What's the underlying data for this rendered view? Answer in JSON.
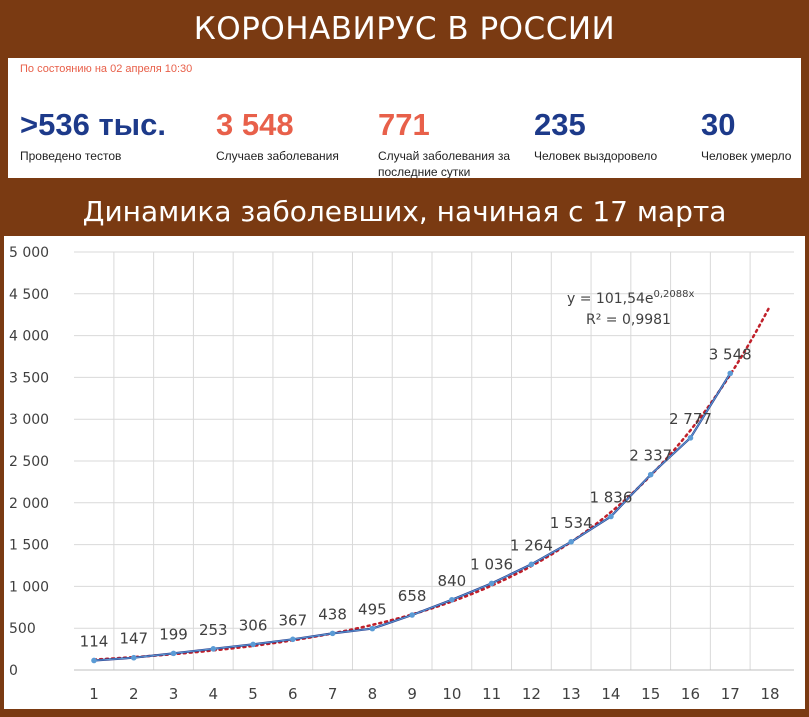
{
  "header": {
    "title": "КОРОНАВИРУС В РОССИИ"
  },
  "stats": {
    "as_of": "По состоянию на 02 апреля 10:30",
    "items": [
      {
        "value": ">536 тыс.",
        "label": "Проведено тестов",
        "color": "#1d3a8a"
      },
      {
        "value": "3 548",
        "label": "Случаев заболевания",
        "color": "#e8604a"
      },
      {
        "value": "771",
        "label": "Случай заболевания за последние сутки",
        "color": "#e8604a"
      },
      {
        "value": "235",
        "label": "Человек выздоровело",
        "color": "#1d3a8a"
      },
      {
        "value": "30",
        "label": "Человек умерло",
        "color": "#1d3a8a"
      }
    ]
  },
  "section": {
    "title": "Динамика заболевших, начиная с 17 марта"
  },
  "colors": {
    "banner": "#7a3a12",
    "series_line": "#2f3f8f",
    "series_marker": "#5b9bd5",
    "trend": "#c0202a",
    "grid": "#d9d9d9"
  },
  "chart_data": {
    "type": "line",
    "x": [
      1,
      2,
      3,
      4,
      5,
      6,
      7,
      8,
      9,
      10,
      11,
      12,
      13,
      14,
      15,
      16,
      17
    ],
    "x_ticks": [
      "1",
      "2",
      "3",
      "4",
      "5",
      "6",
      "7",
      "8",
      "9",
      "10",
      "11",
      "12",
      "13",
      "14",
      "15",
      "16",
      "17",
      "18"
    ],
    "values": [
      114,
      147,
      199,
      253,
      306,
      367,
      438,
      495,
      658,
      840,
      1036,
      1264,
      1534,
      1836,
      2337,
      2777,
      3548
    ],
    "data_labels": [
      "114",
      "147",
      "199",
      "253",
      "306",
      "367",
      "438",
      "495",
      "658",
      "840",
      "1 036",
      "1 264",
      "1 534",
      "1 836",
      "2 337",
      "2 777",
      "3 548"
    ],
    "y_ticks": [
      "0",
      "500",
      "1 000",
      "1 500",
      "2 000",
      "2 500",
      "3 000",
      "3 500",
      "4 000",
      "4 500",
      "5 000"
    ],
    "ylim": [
      0,
      5000
    ],
    "xlim": [
      1,
      18
    ],
    "grid": true,
    "trendline": {
      "type": "exponential",
      "a": 101.54,
      "b": 0.2088,
      "x_range": [
        1,
        18
      ],
      "equation_prefix": "y = 101,54e",
      "equation_exponent": "0,2088x",
      "r2_label": "R² = 0,9981"
    }
  }
}
